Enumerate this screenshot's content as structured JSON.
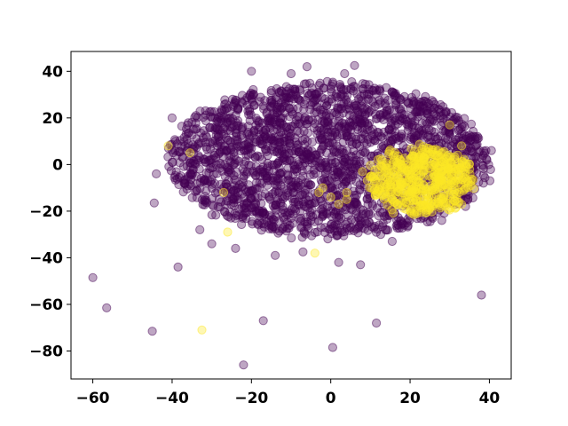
{
  "chart_data": {
    "type": "scatter",
    "title": "",
    "xlabel": "",
    "ylabel": "",
    "xlim": [
      -65.5,
      45.5
    ],
    "ylim": [
      -92,
      48.5
    ],
    "xticks": [
      -60,
      -40,
      -20,
      0,
      20,
      40
    ],
    "yticks": [
      -80,
      -60,
      -40,
      -20,
      0,
      20,
      40
    ],
    "xtick_labels": [
      "−60",
      "−40",
      "−20",
      "0",
      "20",
      "40"
    ],
    "ytick_labels": [
      "−80",
      "−60",
      "−40",
      "−20",
      "0",
      "20",
      "40"
    ],
    "grid": false,
    "legend": "none",
    "marker_alpha": 0.35,
    "colors": {
      "class_0": "#440154",
      "class_1": "#fde725"
    },
    "series": [
      {
        "color": "#440154",
        "cluster": {
          "center": [
            0,
            2
          ],
          "radius_x": 40,
          "radius_y": 33,
          "approx_count": 2200
        },
        "points": [
          [
            -60,
            -48.5
          ],
          [
            -56.5,
            -61.5
          ],
          [
            -45,
            -71.5
          ],
          [
            -38.5,
            -44
          ],
          [
            -22,
            -86
          ],
          [
            -17,
            -67
          ],
          [
            0.5,
            -78.5
          ],
          [
            11.5,
            -68
          ],
          [
            38,
            -56
          ],
          [
            -44.5,
            -16.5
          ],
          [
            -44,
            -4
          ],
          [
            -40,
            20
          ],
          [
            -34,
            21
          ],
          [
            -20,
            40
          ],
          [
            -10,
            39
          ],
          [
            -6,
            42
          ],
          [
            3.5,
            39
          ],
          [
            6,
            42.5
          ],
          [
            40.5,
            6
          ],
          [
            38.5,
            -8
          ],
          [
            -33,
            -28
          ],
          [
            -30,
            -34
          ],
          [
            -24,
            -36
          ],
          [
            -14,
            -39
          ],
          [
            -7,
            -37.5
          ],
          [
            2,
            -42
          ],
          [
            7.5,
            -43
          ],
          [
            15.5,
            -33
          ],
          [
            28,
            -24
          ],
          [
            34,
            -18
          ],
          [
            36,
            0
          ],
          [
            30,
            13
          ],
          [
            24,
            25
          ],
          [
            14,
            33
          ],
          [
            -20,
            28
          ],
          [
            -27,
            13
          ],
          [
            -37,
            -8
          ]
        ]
      },
      {
        "color": "#fde725",
        "cluster": {
          "center": [
            23,
            -7
          ],
          "radius_x": 13,
          "radius_y": 14,
          "approx_count": 500
        },
        "points": [
          [
            -32.5,
            -71
          ],
          [
            -41,
            8
          ],
          [
            -35.5,
            5
          ],
          [
            -26,
            -29
          ],
          [
            -27,
            -12
          ],
          [
            -4,
            -38
          ],
          [
            -3,
            -12
          ],
          [
            -2,
            -10
          ],
          [
            0,
            -14
          ],
          [
            2,
            -17
          ],
          [
            4,
            -15
          ],
          [
            4,
            -12
          ],
          [
            8,
            -3
          ],
          [
            10,
            -5
          ],
          [
            14,
            0
          ],
          [
            32,
            4
          ],
          [
            35,
            -2
          ],
          [
            30,
            17
          ],
          [
            33,
            8
          ]
        ]
      }
    ]
  }
}
